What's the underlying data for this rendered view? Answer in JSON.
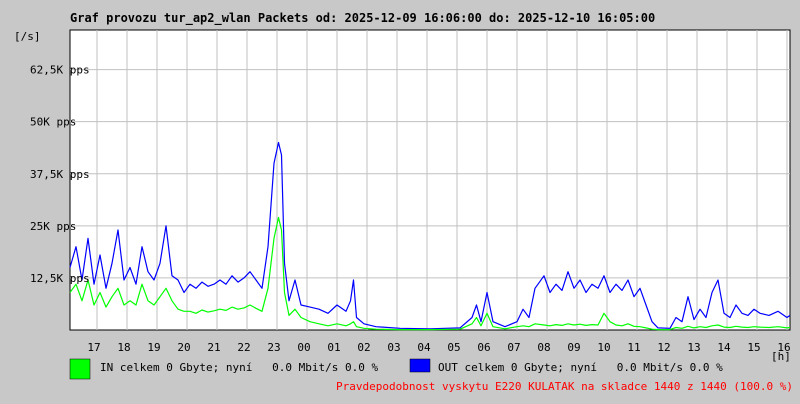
{
  "chart_data": {
    "type": "line",
    "title": "Graf provozu tur_ap2_wlan Packets od: 2025-12-09 16:06:00 do: 2025-12-10 16:05:00",
    "ylabel": "[/s]",
    "xlabel": "[h]",
    "ylim": [
      0,
      72000
    ],
    "xlim": [
      0,
      24
    ],
    "y_ticks": [
      {
        "value": 12500,
        "label": "12,5K pps"
      },
      {
        "value": 25000,
        "label": "25K pps"
      },
      {
        "value": 37500,
        "label": "37,5K pps"
      },
      {
        "value": 50000,
        "label": "50K pps"
      },
      {
        "value": 62500,
        "label": "62,5K pps"
      }
    ],
    "x_ticks": [
      {
        "value": 0.9,
        "label": "17"
      },
      {
        "value": 1.9,
        "label": "18"
      },
      {
        "value": 2.9,
        "label": "19"
      },
      {
        "value": 3.9,
        "label": "20"
      },
      {
        "value": 4.9,
        "label": "21"
      },
      {
        "value": 5.9,
        "label": "22"
      },
      {
        "value": 6.9,
        "label": "23"
      },
      {
        "value": 7.9,
        "label": "00"
      },
      {
        "value": 8.9,
        "label": "01"
      },
      {
        "value": 9.9,
        "label": "02"
      },
      {
        "value": 10.9,
        "label": "03"
      },
      {
        "value": 11.9,
        "label": "04"
      },
      {
        "value": 12.9,
        "label": "05"
      },
      {
        "value": 13.9,
        "label": "06"
      },
      {
        "value": 14.9,
        "label": "07"
      },
      {
        "value": 15.9,
        "label": "08"
      },
      {
        "value": 16.9,
        "label": "09"
      },
      {
        "value": 17.9,
        "label": "10"
      },
      {
        "value": 18.9,
        "label": "11"
      },
      {
        "value": 19.9,
        "label": "12"
      },
      {
        "value": 20.9,
        "label": "13"
      },
      {
        "value": 21.9,
        "label": "14"
      },
      {
        "value": 22.9,
        "label": "15"
      },
      {
        "value": 23.9,
        "label": "16"
      }
    ],
    "grid": true,
    "series": [
      {
        "name": "OUT",
        "color": "#0000ff",
        "points": [
          [
            0,
            15000
          ],
          [
            0.2,
            20000
          ],
          [
            0.4,
            12000
          ],
          [
            0.6,
            22000
          ],
          [
            0.8,
            11000
          ],
          [
            1.0,
            18000
          ],
          [
            1.2,
            10000
          ],
          [
            1.4,
            16000
          ],
          [
            1.6,
            24000
          ],
          [
            1.8,
            12000
          ],
          [
            2.0,
            15000
          ],
          [
            2.2,
            11000
          ],
          [
            2.4,
            20000
          ],
          [
            2.6,
            14000
          ],
          [
            2.8,
            12000
          ],
          [
            3.0,
            16000
          ],
          [
            3.2,
            25000
          ],
          [
            3.4,
            13000
          ],
          [
            3.6,
            12000
          ],
          [
            3.8,
            9000
          ],
          [
            4.0,
            11000
          ],
          [
            4.2,
            10000
          ],
          [
            4.4,
            11500
          ],
          [
            4.6,
            10500
          ],
          [
            4.8,
            11000
          ],
          [
            5.0,
            12000
          ],
          [
            5.2,
            11000
          ],
          [
            5.4,
            13000
          ],
          [
            5.6,
            11500
          ],
          [
            5.8,
            12500
          ],
          [
            6.0,
            14000
          ],
          [
            6.2,
            12000
          ],
          [
            6.4,
            10000
          ],
          [
            6.6,
            20000
          ],
          [
            6.8,
            40000
          ],
          [
            6.95,
            45000
          ],
          [
            7.05,
            42000
          ],
          [
            7.15,
            16000
          ],
          [
            7.3,
            7000
          ],
          [
            7.5,
            12000
          ],
          [
            7.7,
            6000
          ],
          [
            8.0,
            5500
          ],
          [
            8.3,
            5000
          ],
          [
            8.6,
            4000
          ],
          [
            8.9,
            6000
          ],
          [
            9.2,
            4500
          ],
          [
            9.35,
            7000
          ],
          [
            9.45,
            12000
          ],
          [
            9.55,
            3000
          ],
          [
            9.8,
            1500
          ],
          [
            10.2,
            800
          ],
          [
            11.0,
            400
          ],
          [
            12.0,
            300
          ],
          [
            13.0,
            500
          ],
          [
            13.4,
            3000
          ],
          [
            13.55,
            6000
          ],
          [
            13.7,
            2000
          ],
          [
            13.9,
            9000
          ],
          [
            14.1,
            2000
          ],
          [
            14.5,
            800
          ],
          [
            14.9,
            2000
          ],
          [
            15.1,
            5000
          ],
          [
            15.3,
            3000
          ],
          [
            15.5,
            10000
          ],
          [
            15.8,
            13000
          ],
          [
            16.0,
            9000
          ],
          [
            16.2,
            11000
          ],
          [
            16.4,
            9500
          ],
          [
            16.6,
            14000
          ],
          [
            16.8,
            10000
          ],
          [
            17.0,
            12000
          ],
          [
            17.2,
            9000
          ],
          [
            17.4,
            11000
          ],
          [
            17.6,
            10000
          ],
          [
            17.8,
            13000
          ],
          [
            18.0,
            9000
          ],
          [
            18.2,
            11000
          ],
          [
            18.4,
            9500
          ],
          [
            18.6,
            12000
          ],
          [
            18.8,
            8000
          ],
          [
            19.0,
            10000
          ],
          [
            19.2,
            6000
          ],
          [
            19.4,
            2000
          ],
          [
            19.6,
            500
          ],
          [
            20.0,
            400
          ],
          [
            20.2,
            3000
          ],
          [
            20.4,
            2000
          ],
          [
            20.6,
            8000
          ],
          [
            20.8,
            2500
          ],
          [
            21.0,
            5000
          ],
          [
            21.2,
            3000
          ],
          [
            21.4,
            9000
          ],
          [
            21.6,
            12000
          ],
          [
            21.8,
            4000
          ],
          [
            22.0,
            3000
          ],
          [
            22.2,
            6000
          ],
          [
            22.4,
            4000
          ],
          [
            22.6,
            3500
          ],
          [
            22.8,
            5000
          ],
          [
            23.0,
            4000
          ],
          [
            23.3,
            3500
          ],
          [
            23.6,
            4500
          ],
          [
            23.9,
            3000
          ],
          [
            24.0,
            3500
          ]
        ]
      },
      {
        "name": "IN",
        "color": "#00ff00",
        "points": [
          [
            0,
            9000
          ],
          [
            0.2,
            11000
          ],
          [
            0.4,
            7000
          ],
          [
            0.6,
            12000
          ],
          [
            0.8,
            6000
          ],
          [
            1.0,
            9000
          ],
          [
            1.2,
            5500
          ],
          [
            1.4,
            8000
          ],
          [
            1.6,
            10000
          ],
          [
            1.8,
            6000
          ],
          [
            2.0,
            7000
          ],
          [
            2.2,
            6000
          ],
          [
            2.4,
            11000
          ],
          [
            2.6,
            7000
          ],
          [
            2.8,
            6000
          ],
          [
            3.0,
            8000
          ],
          [
            3.2,
            10000
          ],
          [
            3.4,
            7000
          ],
          [
            3.6,
            5000
          ],
          [
            3.8,
            4500
          ],
          [
            4.0,
            4500
          ],
          [
            4.2,
            4000
          ],
          [
            4.4,
            4800
          ],
          [
            4.6,
            4300
          ],
          [
            4.8,
            4600
          ],
          [
            5.0,
            5000
          ],
          [
            5.2,
            4700
          ],
          [
            5.4,
            5500
          ],
          [
            5.6,
            5000
          ],
          [
            5.8,
            5300
          ],
          [
            6.0,
            6000
          ],
          [
            6.2,
            5200
          ],
          [
            6.4,
            4500
          ],
          [
            6.6,
            10000
          ],
          [
            6.8,
            22000
          ],
          [
            6.95,
            27000
          ],
          [
            7.05,
            24000
          ],
          [
            7.15,
            9000
          ],
          [
            7.3,
            3500
          ],
          [
            7.5,
            5000
          ],
          [
            7.7,
            3000
          ],
          [
            8.0,
            2000
          ],
          [
            8.3,
            1500
          ],
          [
            8.6,
            1000
          ],
          [
            8.9,
            1500
          ],
          [
            9.2,
            1000
          ],
          [
            9.35,
            1500
          ],
          [
            9.45,
            2000
          ],
          [
            9.55,
            800
          ],
          [
            9.8,
            400
          ],
          [
            10.2,
            200
          ],
          [
            11.0,
            100
          ],
          [
            12.0,
            100
          ],
          [
            13.0,
            200
          ],
          [
            13.4,
            1500
          ],
          [
            13.55,
            3000
          ],
          [
            13.7,
            1000
          ],
          [
            13.9,
            4000
          ],
          [
            14.1,
            800
          ],
          [
            14.5,
            300
          ],
          [
            14.9,
            800
          ],
          [
            15.1,
            1000
          ],
          [
            15.3,
            800
          ],
          [
            15.5,
            1500
          ],
          [
            15.8,
            1200
          ],
          [
            16.0,
            1000
          ],
          [
            16.2,
            1300
          ],
          [
            16.4,
            1100
          ],
          [
            16.6,
            1500
          ],
          [
            16.8,
            1200
          ],
          [
            17.0,
            1400
          ],
          [
            17.2,
            1100
          ],
          [
            17.4,
            1300
          ],
          [
            17.6,
            1200
          ],
          [
            17.8,
            4000
          ],
          [
            18.0,
            2000
          ],
          [
            18.2,
            1200
          ],
          [
            18.4,
            1000
          ],
          [
            18.6,
            1500
          ],
          [
            18.8,
            900
          ],
          [
            19.0,
            800
          ],
          [
            19.2,
            500
          ],
          [
            19.4,
            200
          ],
          [
            19.6,
            100
          ],
          [
            20.0,
            100
          ],
          [
            20.2,
            600
          ],
          [
            20.4,
            400
          ],
          [
            20.6,
            900
          ],
          [
            20.8,
            500
          ],
          [
            21.0,
            800
          ],
          [
            21.2,
            600
          ],
          [
            21.4,
            1000
          ],
          [
            21.6,
            1200
          ],
          [
            21.8,
            700
          ],
          [
            22.0,
            600
          ],
          [
            22.2,
            900
          ],
          [
            22.4,
            700
          ],
          [
            22.6,
            600
          ],
          [
            22.8,
            800
          ],
          [
            23.0,
            700
          ],
          [
            23.3,
            600
          ],
          [
            23.6,
            800
          ],
          [
            23.9,
            500
          ],
          [
            24.0,
            600
          ]
        ]
      }
    ]
  },
  "legend": {
    "in_text": "IN celkem 0 Gbyte; nyní   0.0 Mbit/s 0.0 %",
    "out_text": "OUT celkem 0 Gbyte; nyní   0.0 Mbit/s 0.0 %",
    "in_color": "#00ff00",
    "out_color": "#0000ff"
  },
  "footer": {
    "text": "Pravdepodobnost vyskytu E220 KULATAK na skladce 1440 z 1440 (100.0 %)",
    "color": "#ff0000"
  }
}
